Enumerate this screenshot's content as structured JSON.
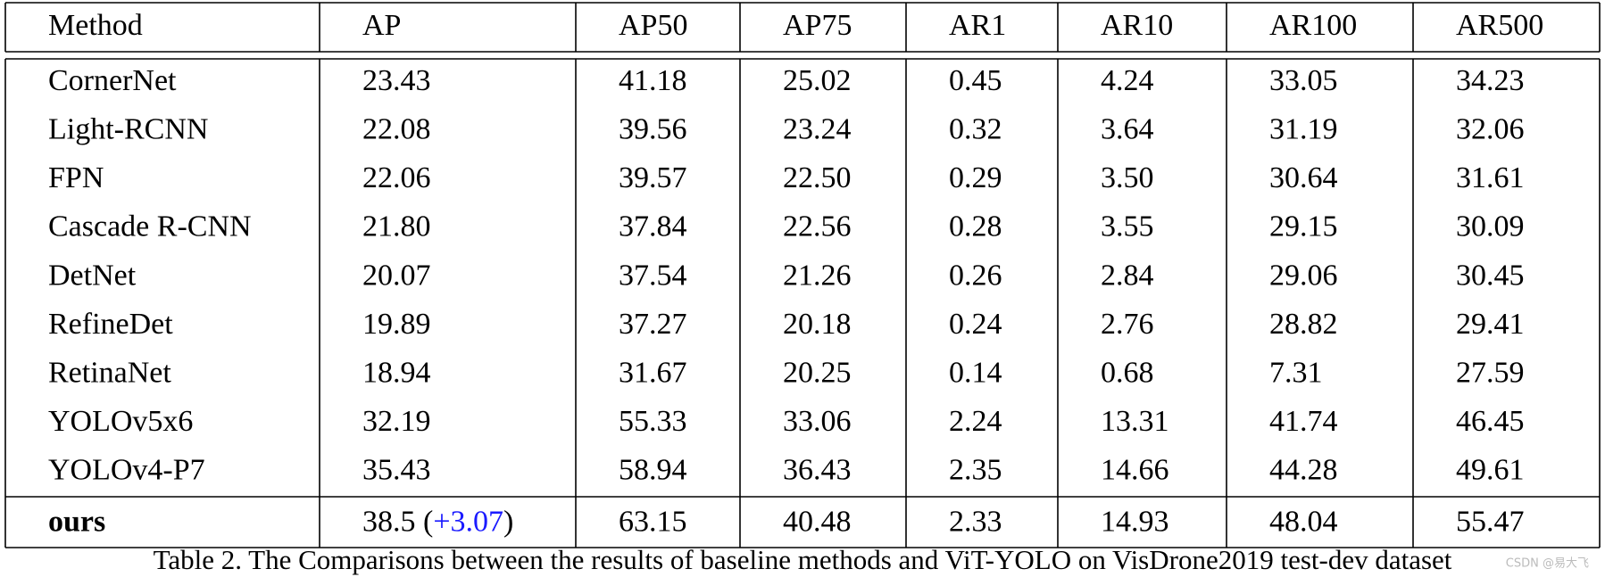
{
  "table": {
    "header": [
      "Method",
      "AP",
      "AP50",
      "AP75",
      "AR1",
      "AR10",
      "AR100",
      "AR500"
    ],
    "rows": [
      [
        "CornerNet",
        "23.43",
        "41.18",
        "25.02",
        "0.45",
        "4.24",
        "33.05",
        "34.23"
      ],
      [
        "Light-RCNN",
        "22.08",
        "39.56",
        "23.24",
        "0.32",
        "3.64",
        "31.19",
        "32.06"
      ],
      [
        "FPN",
        "22.06",
        "39.57",
        "22.50",
        "0.29",
        "3.50",
        "30.64",
        "31.61"
      ],
      [
        "Cascade R-CNN",
        "21.80",
        "37.84",
        "22.56",
        "0.28",
        "3.55",
        "29.15",
        "30.09"
      ],
      [
        "DetNet",
        "20.07",
        "37.54",
        "21.26",
        "0.26",
        "2.84",
        "29.06",
        "30.45"
      ],
      [
        "RefineDet",
        "19.89",
        "37.27",
        "20.18",
        "0.24",
        "2.76",
        "28.82",
        "29.41"
      ],
      [
        "RetinaNet",
        "18.94",
        "31.67",
        "20.25",
        "0.14",
        "0.68",
        "7.31",
        "27.59"
      ],
      [
        "YOLOv5x6",
        "32.19",
        "55.33",
        "33.06",
        "2.24",
        "13.31",
        "41.74",
        "46.45"
      ],
      [
        "YOLOv4-P7",
        "35.43",
        "58.94",
        "36.43",
        "2.35",
        "14.66",
        "44.28",
        "49.61"
      ]
    ],
    "ours": {
      "method": "ours",
      "ap_parts": [
        "38.5 (",
        "+3.07",
        ")"
      ],
      "rest": [
        "63.15",
        "40.48",
        "2.33",
        "14.93",
        "48.04",
        "55.47"
      ]
    }
  },
  "caption": "Table 2. The Comparisons between the results of baseline methods and ViT-YOLO on VisDrone2019 test-dev dataset",
  "watermark": "CSDN @易大飞"
}
